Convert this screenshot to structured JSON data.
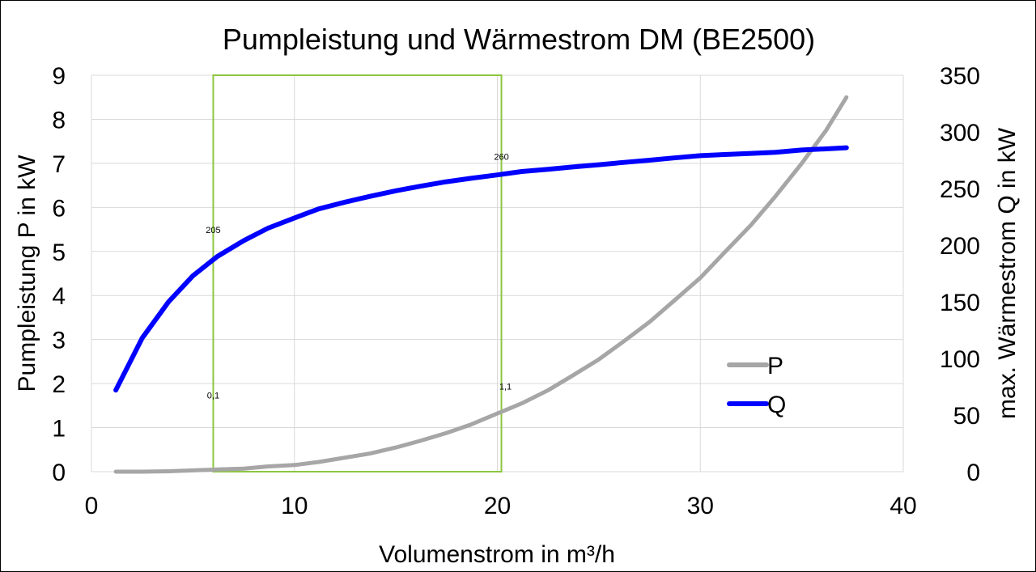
{
  "chart_data": {
    "type": "line",
    "title": "Pumpleistung und Wärmestrom DM (BE2500)",
    "xlabel": "Volumenstrom in m³/h",
    "ylabel_left": "Pumpleistung P in kW",
    "ylabel_right": "max. Wärmestrom Q in kW",
    "xlim": [
      0,
      40
    ],
    "ylim_left": [
      0,
      9
    ],
    "ylim_right": [
      0,
      350
    ],
    "xticks": [
      "0",
      "10",
      "20",
      "30",
      "40"
    ],
    "yticks_left": [
      "0",
      "1",
      "2",
      "3",
      "4",
      "5",
      "6",
      "7",
      "8",
      "9"
    ],
    "yticks_right": [
      "0",
      "50",
      "100",
      "150",
      "200",
      "250",
      "300",
      "350"
    ],
    "grid": true,
    "legend_position": "right",
    "series": [
      {
        "name": "P",
        "axis": "left",
        "color": "#a6a6a6",
        "x": [
          1.2,
          2.5,
          3.8,
          5.0,
          6.2,
          7.5,
          8.7,
          10.0,
          11.2,
          12.5,
          13.7,
          15.0,
          16.2,
          17.5,
          18.7,
          20.0,
          21.2,
          22.5,
          23.7,
          25.0,
          26.2,
          27.5,
          28.7,
          30.0,
          31.2,
          32.5,
          33.7,
          35.0,
          36.2,
          37.2
        ],
        "values": [
          0.0,
          0.0,
          0.01,
          0.03,
          0.05,
          0.07,
          0.12,
          0.15,
          0.22,
          0.32,
          0.41,
          0.55,
          0.7,
          0.88,
          1.07,
          1.32,
          1.55,
          1.85,
          2.18,
          2.55,
          2.95,
          3.4,
          3.88,
          4.4,
          4.98,
          5.6,
          6.25,
          7.0,
          7.75,
          8.5
        ]
      },
      {
        "name": "Q",
        "axis": "right",
        "color": "#0000ff",
        "x": [
          1.2,
          2.5,
          3.8,
          5.0,
          6.2,
          7.5,
          8.7,
          10.0,
          11.2,
          12.5,
          13.7,
          15.0,
          16.2,
          17.5,
          18.7,
          20.0,
          21.2,
          22.5,
          23.7,
          25.0,
          26.2,
          27.5,
          28.7,
          30.0,
          31.2,
          32.5,
          33.7,
          35.0,
          36.2,
          37.2
        ],
        "values": [
          72,
          118,
          150,
          173,
          190,
          204,
          215,
          224,
          232,
          238,
          243,
          248,
          252,
          256,
          259,
          262,
          265,
          267,
          269,
          271,
          273,
          275,
          277,
          279,
          280,
          281,
          282,
          284,
          285,
          286
        ]
      }
    ],
    "highlight_box": {
      "x": [
        6,
        20.2
      ],
      "y_left": [
        0,
        9
      ],
      "color": "#8dc63f"
    },
    "annotations": [
      {
        "text": "205",
        "x": 6.0,
        "y_left": 5.42
      },
      {
        "text": "260",
        "x": 20.2,
        "y_left": 7.08
      },
      {
        "text": "0,1",
        "x": 6.0,
        "y_left": 1.66
      },
      {
        "text": "1,1",
        "x": 20.4,
        "y_left": 1.86
      }
    ]
  }
}
